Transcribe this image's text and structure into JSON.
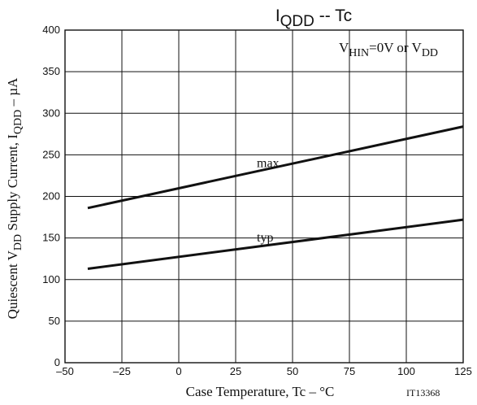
{
  "chart_data": {
    "type": "line",
    "title": {
      "main": "I",
      "sub": "QDD",
      "rest": " -- Tc"
    },
    "xlabel": "Case Temperature, Tc  –  °C",
    "ylabel": {
      "p1": "Quiescent V",
      "s1": "DD",
      "p2": " Supply Current, I",
      "s2": "QDD",
      "p3": "  –  µA"
    },
    "xlim": [
      -50,
      125
    ],
    "ylim": [
      0,
      400
    ],
    "xticks": [
      -50,
      -25,
      0,
      25,
      50,
      75,
      100,
      125
    ],
    "xtick_labels": [
      "–50",
      "–25",
      "0",
      "25",
      "50",
      "75",
      "100",
      "125"
    ],
    "yticks": [
      0,
      50,
      100,
      150,
      200,
      250,
      300,
      350,
      400
    ],
    "ytick_labels": [
      "0",
      "50",
      "100",
      "150",
      "200",
      "250",
      "300",
      "350",
      "400"
    ],
    "grid": true,
    "condition": {
      "p1": "V",
      "s1": "HIN",
      "p2": "=0V or V",
      "s2": "DD"
    },
    "figure_id": "IT13368",
    "series": [
      {
        "name": "max",
        "x": [
          -40,
          125
        ],
        "y": [
          186,
          284
        ]
      },
      {
        "name": "typ",
        "x": [
          -40,
          125
        ],
        "y": [
          113,
          172
        ]
      }
    ]
  }
}
